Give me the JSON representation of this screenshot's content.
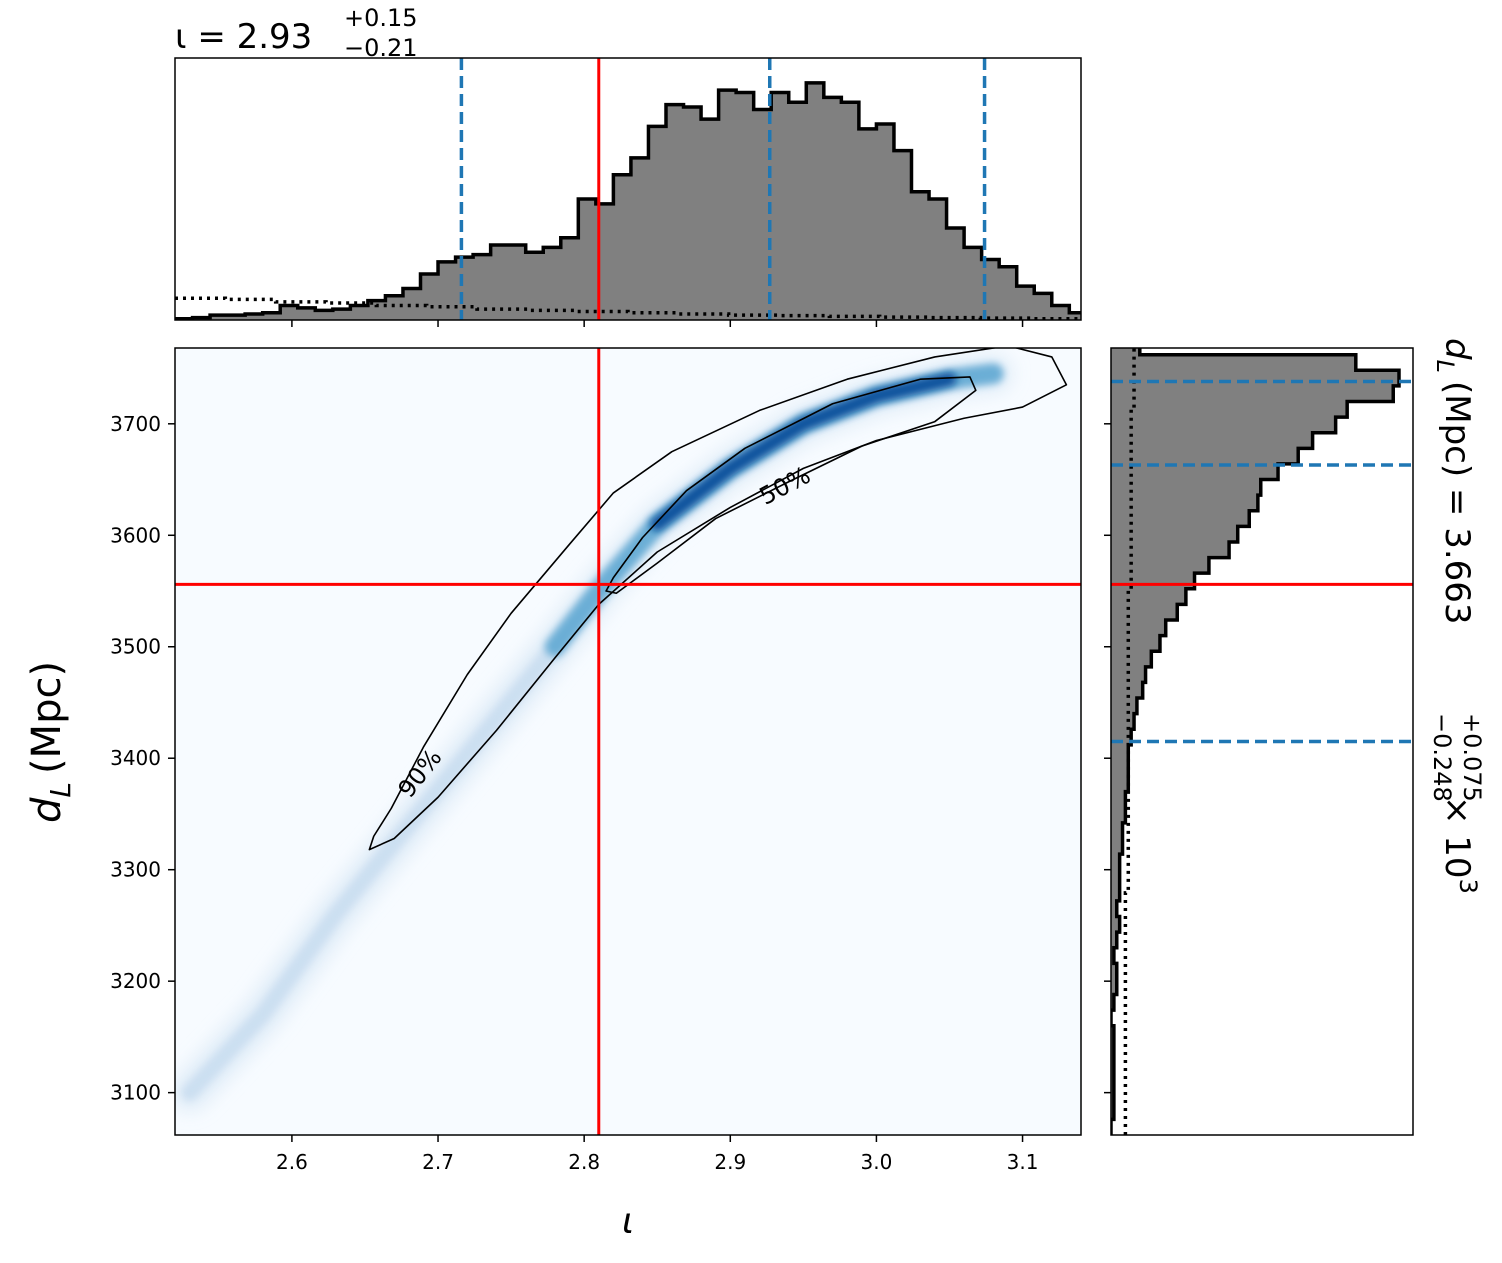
{
  "chart_data": [
    {
      "panel": "iota-marginal",
      "type": "histogram",
      "title_main": "ι = 2.93",
      "title_sup": "+0.15",
      "title_sub": "−0.21",
      "xlim": [
        2.52,
        3.14
      ],
      "x_ticks": [
        2.6,
        2.7,
        2.8,
        2.9,
        3.0,
        3.1
      ],
      "bin_edges": [
        2.52,
        2.532,
        2.544,
        2.556,
        2.568,
        2.58,
        2.592,
        2.604,
        2.616,
        2.628,
        2.64,
        2.652,
        2.664,
        2.676,
        2.688,
        2.7,
        2.712,
        2.724,
        2.736,
        2.748,
        2.76,
        2.772,
        2.784,
        2.796,
        2.808,
        2.82,
        2.832,
        2.844,
        2.856,
        2.868,
        2.88,
        2.892,
        2.904,
        2.916,
        2.928,
        2.94,
        2.952,
        2.964,
        2.976,
        2.988,
        3.0,
        3.012,
        3.024,
        3.036,
        3.048,
        3.06,
        3.072,
        3.084,
        3.096,
        3.108,
        3.12,
        3.132,
        3.14
      ],
      "counts": [
        0.005,
        0.01,
        0.02,
        0.02,
        0.025,
        0.03,
        0.06,
        0.05,
        0.04,
        0.045,
        0.06,
        0.08,
        0.1,
        0.13,
        0.19,
        0.24,
        0.26,
        0.27,
        0.31,
        0.31,
        0.28,
        0.3,
        0.34,
        0.5,
        0.48,
        0.6,
        0.67,
        0.8,
        0.89,
        0.88,
        0.83,
        0.95,
        0.94,
        0.87,
        0.94,
        0.9,
        0.98,
        0.92,
        0.9,
        0.79,
        0.81,
        0.7,
        0.53,
        0.5,
        0.38,
        0.3,
        0.25,
        0.22,
        0.14,
        0.11,
        0.06,
        0.03
      ],
      "prior_dotted": [
        0.09,
        0.085,
        0.075,
        0.07,
        0.06,
        0.055,
        0.045,
        0.04,
        0.035,
        0.03,
        0.025,
        0.02,
        0.018,
        0.015,
        0.012,
        0.01,
        0.008,
        0.005
      ],
      "quantile_lines": [
        2.716,
        2.927,
        3.074
      ],
      "injection": 2.81
    },
    {
      "panel": "joint-density",
      "type": "heatmap",
      "xlabel": "ι",
      "ylabel": "d",
      "ylabel_sub": "L",
      "ylabel_unit": "(Mpc)",
      "xlim": [
        2.52,
        3.14
      ],
      "ylim": [
        3062,
        3768
      ],
      "x_ticks": [
        2.6,
        2.7,
        2.8,
        2.9,
        3.0,
        3.1
      ],
      "y_ticks": [
        3100,
        3200,
        3300,
        3400,
        3500,
        3600,
        3700
      ],
      "ridge_x": [
        2.53,
        2.58,
        2.63,
        2.68,
        2.73,
        2.78,
        2.81,
        2.85,
        2.9,
        2.95,
        3.0,
        3.05,
        3.08
      ],
      "ridge_y": [
        3100,
        3170,
        3260,
        3340,
        3420,
        3500,
        3550,
        3610,
        3660,
        3700,
        3725,
        3740,
        3745
      ],
      "contour_90": {
        "label": "90%",
        "x": [
          2.653,
          2.67,
          2.7,
          2.74,
          2.78,
          2.81,
          2.85,
          2.9,
          2.95,
          3.0,
          3.06,
          3.1,
          3.13,
          3.12,
          3.09,
          3.04,
          2.98,
          2.92,
          2.86,
          2.82,
          2.79,
          2.75,
          2.72,
          2.69,
          2.668,
          2.656
        ],
        "y": [
          3318,
          3328,
          3365,
          3425,
          3490,
          3538,
          3585,
          3625,
          3660,
          3685,
          3705,
          3715,
          3735,
          3760,
          3770,
          3760,
          3740,
          3712,
          3675,
          3638,
          3592,
          3530,
          3475,
          3410,
          3355,
          3330
        ]
      },
      "contour_50": {
        "label": "50%",
        "x": [
          2.822,
          2.85,
          2.89,
          2.94,
          2.99,
          3.04,
          3.068,
          3.064,
          3.03,
          2.97,
          2.91,
          2.87,
          2.84,
          2.82,
          2.815
        ],
        "y": [
          3548,
          3575,
          3615,
          3648,
          3680,
          3702,
          3730,
          3742,
          3740,
          3718,
          3678,
          3640,
          3598,
          3562,
          3550
        ]
      },
      "injection": {
        "x": 2.81,
        "y": 3556
      }
    },
    {
      "panel": "dL-marginal",
      "type": "histogram",
      "orientation": "horizontal",
      "label_main": "d",
      "label_sub": "L",
      "label_rest": "(Mpc) = 3.663",
      "label_sup": "+0.075",
      "label_sub2": "−0.248",
      "label_tail": "× 10",
      "label_exp": "3",
      "ylim": [
        3062,
        3768
      ],
      "y_ticks": [
        3100,
        3200,
        3300,
        3400,
        3500,
        3600,
        3700
      ],
      "bin_edges": [
        3062,
        3076,
        3090,
        3104,
        3118,
        3132,
        3146,
        3160,
        3174,
        3188,
        3202,
        3216,
        3230,
        3244,
        3258,
        3272,
        3286,
        3300,
        3314,
        3328,
        3342,
        3356,
        3370,
        3384,
        3398,
        3412,
        3426,
        3440,
        3454,
        3468,
        3482,
        3496,
        3510,
        3524,
        3538,
        3552,
        3566,
        3580,
        3594,
        3608,
        3622,
        3636,
        3650,
        3664,
        3678,
        3692,
        3706,
        3720,
        3734,
        3748,
        3762,
        3768
      ],
      "counts": [
        0.0,
        0.01,
        0.01,
        0.01,
        0.01,
        0.01,
        0.01,
        0.0,
        0.01,
        0.02,
        0.02,
        0.01,
        0.02,
        0.03,
        0.02,
        0.03,
        0.03,
        0.03,
        0.04,
        0.04,
        0.05,
        0.05,
        0.06,
        0.06,
        0.06,
        0.07,
        0.08,
        0.09,
        0.11,
        0.12,
        0.14,
        0.17,
        0.19,
        0.23,
        0.26,
        0.29,
        0.34,
        0.41,
        0.44,
        0.48,
        0.51,
        0.52,
        0.58,
        0.65,
        0.7,
        0.78,
        0.82,
        0.98,
        1.0,
        0.85,
        0.1
      ],
      "prior_dotted": [
        0.05,
        0.05,
        0.05,
        0.05,
        0.06,
        0.06,
        0.06,
        0.06,
        0.06,
        0.07,
        0.07,
        0.07,
        0.08
      ],
      "quantile_lines": [
        3415,
        3663,
        3738
      ],
      "injection": 3556
    }
  ],
  "colors": {
    "hist_fill": "#808080",
    "hist_edge": "#000000",
    "quantile": "#1f77b4",
    "injection": "#ff0000",
    "heat_low": "#f7fbff",
    "heat_high": "#08519c"
  }
}
